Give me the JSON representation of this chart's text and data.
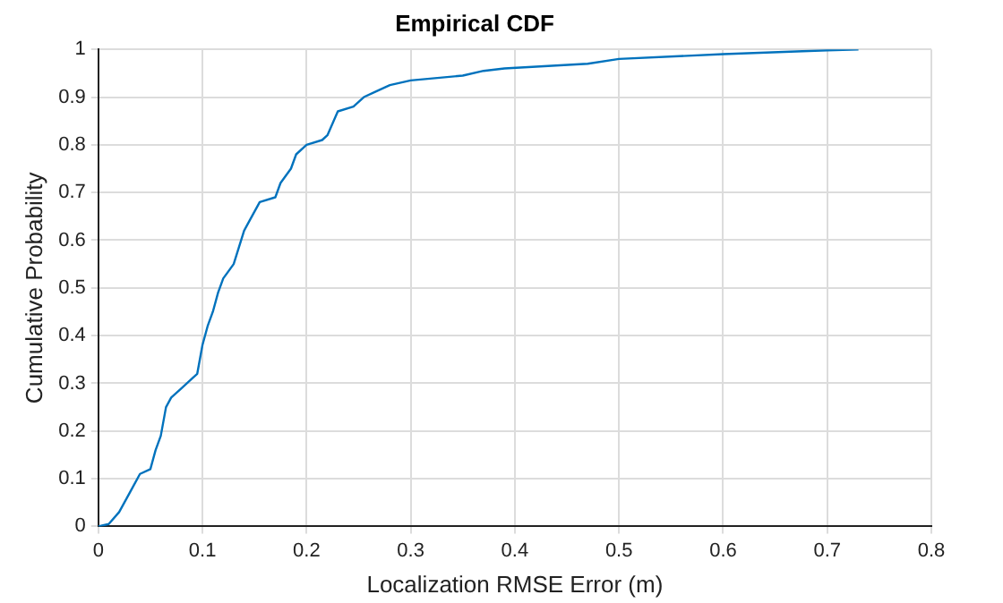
{
  "chart_data": {
    "type": "line",
    "title": "Empirical CDF",
    "xlabel": "Localization RMSE Error (m)",
    "ylabel": "Cumulative Probability",
    "x": [
      0,
      0.01,
      0.02,
      0.03,
      0.04,
      0.05,
      0.055,
      0.06,
      0.065,
      0.07,
      0.08,
      0.09,
      0.095,
      0.1,
      0.105,
      0.11,
      0.115,
      0.12,
      0.13,
      0.14,
      0.145,
      0.155,
      0.17,
      0.175,
      0.185,
      0.19,
      0.2,
      0.215,
      0.22,
      0.23,
      0.245,
      0.255,
      0.265,
      0.28,
      0.3,
      0.35,
      0.37,
      0.39,
      0.47,
      0.5,
      0.6,
      0.7,
      0.73
    ],
    "series": [
      {
        "color": "#0072bd",
        "values": [
          0,
          0.005,
          0.03,
          0.07,
          0.11,
          0.12,
          0.16,
          0.19,
          0.25,
          0.27,
          0.29,
          0.31,
          0.32,
          0.38,
          0.42,
          0.45,
          0.49,
          0.52,
          0.55,
          0.62,
          0.64,
          0.68,
          0.69,
          0.72,
          0.75,
          0.78,
          0.8,
          0.81,
          0.82,
          0.87,
          0.88,
          0.9,
          0.91,
          0.925,
          0.935,
          0.945,
          0.955,
          0.96,
          0.97,
          0.98,
          0.99,
          0.998,
          1
        ]
      }
    ],
    "xlim": [
      0,
      0.8
    ],
    "xticks": [
      0,
      0.1,
      0.2,
      0.3,
      0.4,
      0.5,
      0.6,
      0.7,
      0.8
    ],
    "ylim": [
      0,
      1
    ],
    "yticks": [
      0,
      0.1,
      0.2,
      0.3,
      0.4,
      0.5,
      0.6,
      0.7,
      0.8,
      0.9,
      1
    ],
    "grid": true,
    "legend": false,
    "marker": "none",
    "line_style": "solid"
  }
}
